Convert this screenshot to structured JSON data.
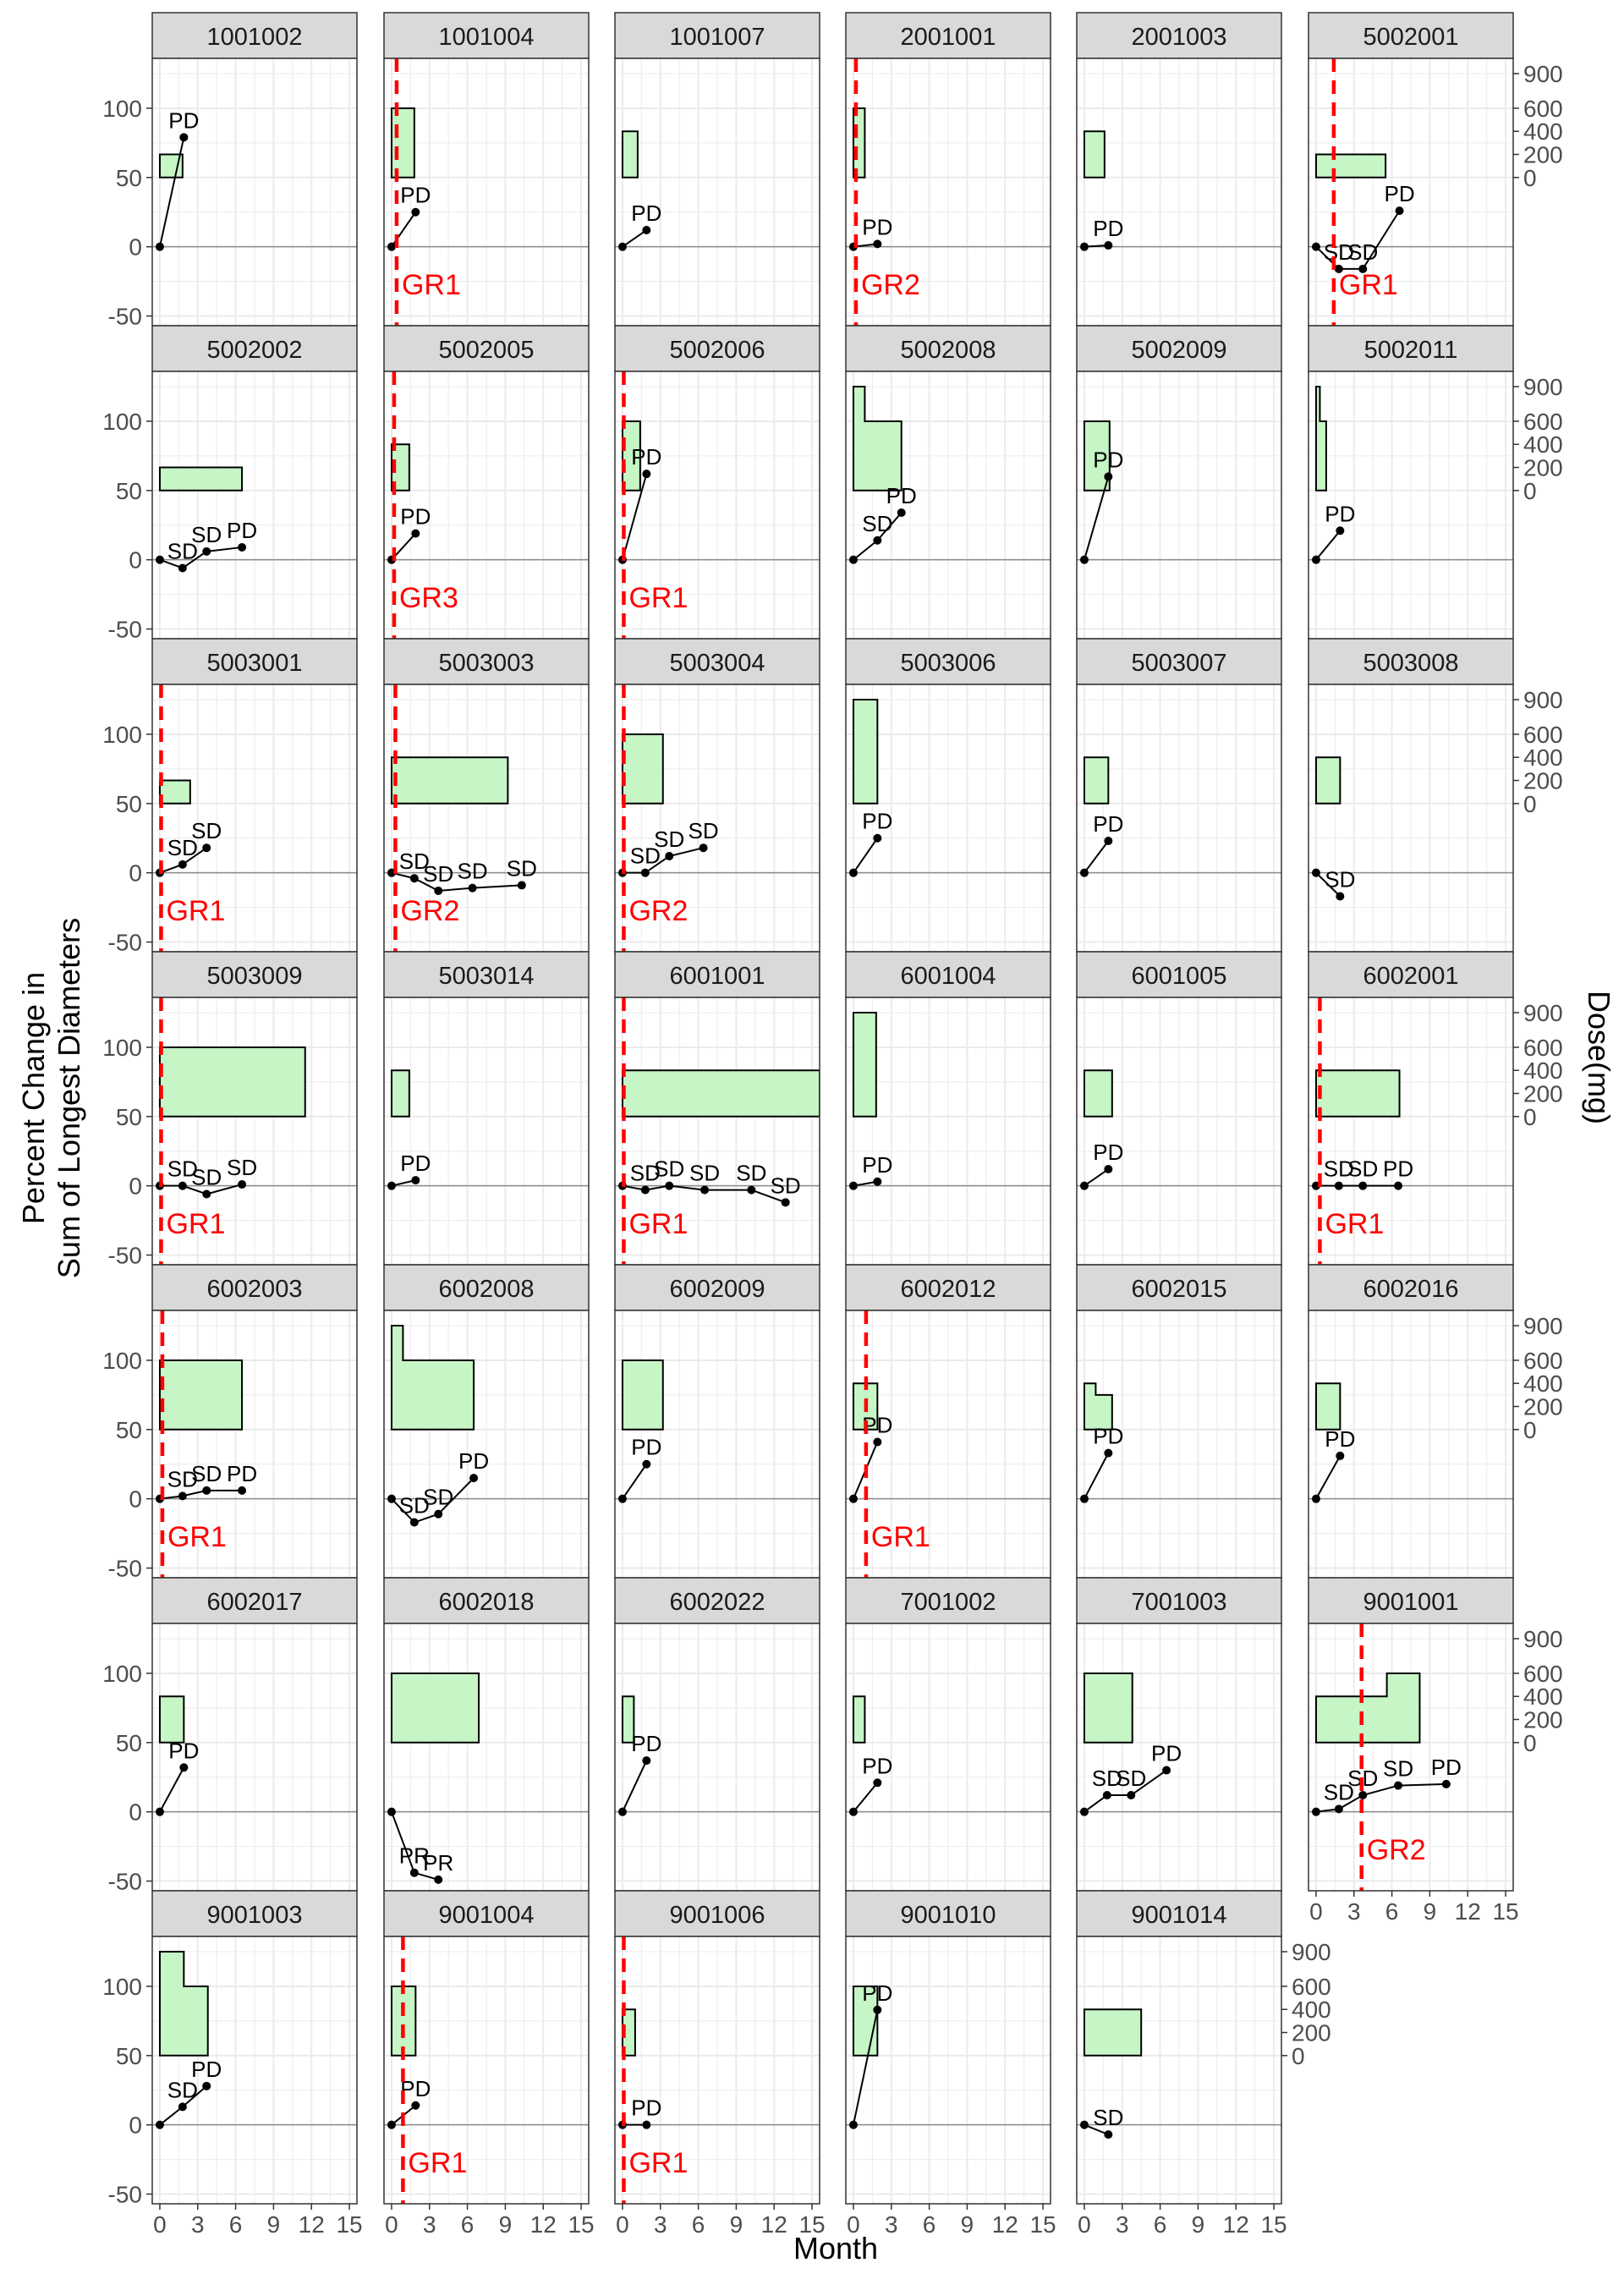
{
  "chart_data": {
    "type": "line",
    "xlabel": "Month",
    "ylabel": [
      "Percent Change in",
      "Sum of Longest Diameters"
    ],
    "y2label": "Dose(mg)",
    "xlim": [
      -0.6,
      15.6
    ],
    "ylim": [
      -57,
      136
    ],
    "xticks": [
      0,
      3,
      6,
      9,
      12,
      15
    ],
    "yticks": [
      -50,
      0,
      50,
      100
    ],
    "dose_ticks": [
      0,
      200,
      400,
      600,
      900
    ],
    "dose_to_pct": "pct = 50 + dose / 12",
    "grid": true,
    "colors": {
      "dose_fill": "#c6f5c6",
      "progression_line": "#ff0000",
      "strip": "#d9d9d9",
      "point": "#000000"
    },
    "panels": [
      {
        "id": "1001002",
        "dose": [
          [
            0,
            1.8,
            200
          ]
        ],
        "points": [
          [
            0,
            0,
            ""
          ],
          [
            1.9,
            79,
            "PD"
          ]
        ],
        "gr": null
      },
      {
        "id": "1001004",
        "dose": [
          [
            0,
            1.8,
            600
          ]
        ],
        "points": [
          [
            0,
            0,
            ""
          ],
          [
            1.9,
            25,
            "PD"
          ]
        ],
        "gr": {
          "x": 0.4,
          "label": "GR1"
        }
      },
      {
        "id": "1001007",
        "dose": [
          [
            0,
            1.2,
            400
          ]
        ],
        "points": [
          [
            0,
            0,
            ""
          ],
          [
            1.9,
            12,
            "PD"
          ]
        ],
        "gr": null
      },
      {
        "id": "2001001",
        "dose": [
          [
            0,
            0.9,
            600
          ]
        ],
        "points": [
          [
            0,
            0,
            ""
          ],
          [
            1.9,
            2,
            "PD"
          ]
        ],
        "gr": {
          "x": 0.2,
          "label": "GR2"
        }
      },
      {
        "id": "2001003",
        "dose": [
          [
            0,
            1.6,
            400
          ]
        ],
        "points": [
          [
            0,
            0,
            ""
          ],
          [
            1.9,
            1,
            "PD"
          ]
        ],
        "gr": null
      },
      {
        "id": "5002001",
        "dose": [
          [
            0,
            5.5,
            200
          ]
        ],
        "points": [
          [
            0,
            0,
            ""
          ],
          [
            1.8,
            -16,
            "SD"
          ],
          [
            3.7,
            -16,
            "SD"
          ],
          [
            6.6,
            26,
            "PD"
          ]
        ],
        "gr": {
          "x": 1.4,
          "label": "GR1"
        }
      },
      {
        "id": "5002002",
        "dose": [
          [
            0,
            6.5,
            200
          ]
        ],
        "points": [
          [
            0,
            0,
            ""
          ],
          [
            1.8,
            -6,
            "SD"
          ],
          [
            3.7,
            6,
            "SD"
          ],
          [
            6.5,
            9,
            "PD"
          ]
        ],
        "gr": null
      },
      {
        "id": "5002005",
        "dose": [
          [
            0,
            1.4,
            400
          ]
        ],
        "points": [
          [
            0,
            0,
            ""
          ],
          [
            1.9,
            19,
            "PD"
          ]
        ],
        "gr": {
          "x": 0.2,
          "label": "GR3"
        }
      },
      {
        "id": "5002006",
        "dose": [
          [
            0,
            1.4,
            600
          ]
        ],
        "points": [
          [
            0,
            0,
            ""
          ],
          [
            1.9,
            62,
            "PD"
          ]
        ],
        "gr": {
          "x": 0.1,
          "label": "GR1"
        }
      },
      {
        "id": "5002008",
        "dose": [
          [
            0,
            0.9,
            900
          ],
          [
            0.9,
            3.8,
            600
          ]
        ],
        "points": [
          [
            0,
            0,
            ""
          ],
          [
            1.9,
            14,
            "SD"
          ],
          [
            3.8,
            34,
            "PD"
          ]
        ],
        "gr": null
      },
      {
        "id": "5002009",
        "dose": [
          [
            0,
            2.0,
            600
          ]
        ],
        "points": [
          [
            0,
            0,
            ""
          ],
          [
            1.9,
            60,
            "PD"
          ]
        ],
        "gr": null
      },
      {
        "id": "5002011",
        "dose": [
          [
            0,
            0.3,
            900
          ],
          [
            0.3,
            0.8,
            600
          ]
        ],
        "points": [
          [
            0,
            0,
            ""
          ],
          [
            1.9,
            21,
            "PD"
          ]
        ],
        "gr": null
      },
      {
        "id": "5003001",
        "dose": [
          [
            0,
            2.4,
            200
          ]
        ],
        "points": [
          [
            0,
            0,
            ""
          ],
          [
            1.8,
            6,
            "SD"
          ],
          [
            3.7,
            18,
            "SD"
          ]
        ],
        "gr": {
          "x": 0.1,
          "label": "GR1"
        }
      },
      {
        "id": "5003003",
        "dose": [
          [
            0,
            9.2,
            400
          ]
        ],
        "points": [
          [
            0,
            0,
            ""
          ],
          [
            1.8,
            -4,
            "SD"
          ],
          [
            3.7,
            -13,
            "SD"
          ],
          [
            6.4,
            -11,
            "SD"
          ],
          [
            10.3,
            -9,
            "SD"
          ]
        ],
        "gr": {
          "x": 0.3,
          "label": "GR2"
        }
      },
      {
        "id": "5003004",
        "dose": [
          [
            0,
            3.2,
            600
          ]
        ],
        "points": [
          [
            0,
            0,
            ""
          ],
          [
            1.8,
            0,
            "SD"
          ],
          [
            3.7,
            12,
            "SD"
          ],
          [
            6.4,
            18,
            "SD"
          ]
        ],
        "gr": {
          "x": 0.1,
          "label": "GR2"
        }
      },
      {
        "id": "5003006",
        "dose": [
          [
            0,
            1.9,
            900
          ]
        ],
        "points": [
          [
            0,
            0,
            ""
          ],
          [
            1.9,
            25,
            "PD"
          ]
        ],
        "gr": null
      },
      {
        "id": "5003007",
        "dose": [
          [
            0,
            1.9,
            400
          ]
        ],
        "points": [
          [
            0,
            0,
            ""
          ],
          [
            1.9,
            23,
            "PD"
          ]
        ],
        "gr": null
      },
      {
        "id": "5003008",
        "dose": [
          [
            0,
            1.9,
            400
          ]
        ],
        "points": [
          [
            0,
            0,
            ""
          ],
          [
            1.9,
            -17,
            "SD"
          ]
        ],
        "gr": null
      },
      {
        "id": "5003009",
        "dose": [
          [
            0,
            11.5,
            600
          ]
        ],
        "points": [
          [
            0,
            0,
            ""
          ],
          [
            1.8,
            0,
            "SD"
          ],
          [
            3.7,
            -6,
            "SD"
          ],
          [
            6.5,
            1,
            "SD"
          ]
        ],
        "gr": {
          "x": 0.1,
          "label": "GR1"
        }
      },
      {
        "id": "5003014",
        "dose": [
          [
            0,
            1.4,
            400
          ]
        ],
        "points": [
          [
            0,
            0,
            ""
          ],
          [
            1.9,
            4,
            "PD"
          ]
        ],
        "gr": null
      },
      {
        "id": "6001001",
        "dose": [
          [
            0,
            15.6,
            400
          ]
        ],
        "points": [
          [
            0,
            0,
            ""
          ],
          [
            1.8,
            -3,
            "SD"
          ],
          [
            3.7,
            0,
            "SD"
          ],
          [
            6.5,
            -3,
            "SD"
          ],
          [
            10.2,
            -3,
            "SD"
          ],
          [
            12.9,
            -12,
            "SD"
          ]
        ],
        "gr": {
          "x": 0.1,
          "label": "GR1"
        }
      },
      {
        "id": "6001004",
        "dose": [
          [
            0,
            1.8,
            900
          ]
        ],
        "points": [
          [
            0,
            0,
            ""
          ],
          [
            1.9,
            3,
            "PD"
          ]
        ],
        "gr": null
      },
      {
        "id": "6001005",
        "dose": [
          [
            0,
            2.2,
            400
          ]
        ],
        "points": [
          [
            0,
            0,
            ""
          ],
          [
            1.9,
            12,
            "PD"
          ]
        ],
        "gr": null
      },
      {
        "id": "6002001",
        "dose": [
          [
            0,
            6.6,
            400
          ]
        ],
        "points": [
          [
            0,
            0,
            ""
          ],
          [
            1.8,
            0,
            "SD"
          ],
          [
            3.7,
            0,
            "SD"
          ],
          [
            6.5,
            0,
            "PD"
          ]
        ],
        "gr": {
          "x": 0.3,
          "label": "GR1"
        }
      },
      {
        "id": "6002003",
        "dose": [
          [
            0,
            6.5,
            600
          ]
        ],
        "points": [
          [
            0,
            0,
            ""
          ],
          [
            1.8,
            2,
            "SD"
          ],
          [
            3.7,
            6,
            "SD"
          ],
          [
            6.5,
            6,
            "PD"
          ]
        ],
        "gr": {
          "x": 0.2,
          "label": "GR1"
        }
      },
      {
        "id": "6002008",
        "dose": [
          [
            0,
            0.9,
            900
          ],
          [
            0.9,
            6.5,
            600
          ]
        ],
        "points": [
          [
            0,
            0,
            ""
          ],
          [
            1.8,
            -17,
            "SD"
          ],
          [
            3.7,
            -11,
            "SD"
          ],
          [
            6.5,
            15,
            "PD"
          ]
        ],
        "gr": null
      },
      {
        "id": "6002009",
        "dose": [
          [
            0,
            3.2,
            600
          ]
        ],
        "points": [
          [
            0,
            0,
            ""
          ],
          [
            1.9,
            25,
            "PD"
          ]
        ],
        "gr": null
      },
      {
        "id": "6002012",
        "dose": [
          [
            0,
            1.9,
            400
          ]
        ],
        "points": [
          [
            0,
            0,
            ""
          ],
          [
            1.9,
            41,
            "PD"
          ]
        ],
        "gr": {
          "x": 1.0,
          "label": "GR1"
        }
      },
      {
        "id": "6002015",
        "dose": [
          [
            0,
            0.9,
            400
          ],
          [
            0.9,
            2.2,
            300
          ]
        ],
        "points": [
          [
            0,
            0,
            ""
          ],
          [
            1.9,
            33,
            "PD"
          ]
        ],
        "gr": null
      },
      {
        "id": "6002016",
        "dose": [
          [
            0,
            1.9,
            400
          ]
        ],
        "points": [
          [
            0,
            0,
            ""
          ],
          [
            1.9,
            31,
            "PD"
          ]
        ],
        "gr": null
      },
      {
        "id": "6002017",
        "dose": [
          [
            0,
            1.9,
            400
          ]
        ],
        "points": [
          [
            0,
            0,
            ""
          ],
          [
            1.9,
            32,
            "PD"
          ]
        ],
        "gr": null
      },
      {
        "id": "6002018",
        "dose": [
          [
            0,
            6.9,
            600
          ]
        ],
        "points": [
          [
            0,
            0,
            ""
          ],
          [
            1.8,
            -44,
            "PR"
          ],
          [
            3.7,
            -49,
            "PR"
          ]
        ],
        "gr": null
      },
      {
        "id": "6002022",
        "dose": [
          [
            0,
            0.9,
            400
          ]
        ],
        "points": [
          [
            0,
            0,
            ""
          ],
          [
            1.9,
            37,
            "PD"
          ]
        ],
        "gr": null
      },
      {
        "id": "7001002",
        "dose": [
          [
            0,
            0.9,
            400
          ]
        ],
        "points": [
          [
            0,
            0,
            ""
          ],
          [
            1.9,
            21,
            "PD"
          ]
        ],
        "gr": null
      },
      {
        "id": "7001003",
        "dose": [
          [
            0,
            3.8,
            600
          ]
        ],
        "points": [
          [
            0,
            0,
            ""
          ],
          [
            1.8,
            12,
            "SD"
          ],
          [
            3.7,
            12,
            "SD"
          ],
          [
            6.5,
            30,
            "PD"
          ]
        ],
        "gr": null
      },
      {
        "id": "9001001",
        "dose": [
          [
            0,
            5.6,
            400
          ],
          [
            5.6,
            8.2,
            600
          ]
        ],
        "points": [
          [
            0,
            0,
            ""
          ],
          [
            1.8,
            2,
            "SD"
          ],
          [
            3.7,
            12,
            "SD"
          ],
          [
            6.5,
            19,
            "SD"
          ],
          [
            10.3,
            20,
            "PD"
          ]
        ],
        "gr": {
          "x": 3.6,
          "label": "GR2"
        }
      },
      {
        "id": "9001003",
        "dose": [
          [
            0,
            1.9,
            900
          ],
          [
            1.9,
            3.8,
            600
          ]
        ],
        "points": [
          [
            0,
            0,
            ""
          ],
          [
            1.8,
            13,
            "SD"
          ],
          [
            3.7,
            28,
            "PD"
          ]
        ],
        "gr": null
      },
      {
        "id": "9001004",
        "dose": [
          [
            0,
            1.9,
            600
          ]
        ],
        "points": [
          [
            0,
            0,
            ""
          ],
          [
            1.9,
            14,
            "PD"
          ]
        ],
        "gr": {
          "x": 0.9,
          "label": "GR1"
        }
      },
      {
        "id": "9001006",
        "dose": [
          [
            0,
            1.0,
            400
          ]
        ],
        "points": [
          [
            0,
            0,
            ""
          ],
          [
            1.9,
            0,
            "PD"
          ]
        ],
        "gr": {
          "x": 0.1,
          "label": "GR1"
        }
      },
      {
        "id": "9001010",
        "dose": [
          [
            0,
            1.9,
            600
          ]
        ],
        "points": [
          [
            0,
            0,
            ""
          ],
          [
            1.9,
            83,
            "PD"
          ]
        ],
        "gr": null
      },
      {
        "id": "9001014",
        "dose": [
          [
            0,
            4.5,
            400
          ]
        ],
        "points": [
          [
            0,
            0,
            ""
          ],
          [
            1.9,
            -7,
            "SD"
          ]
        ],
        "gr": null
      }
    ]
  }
}
